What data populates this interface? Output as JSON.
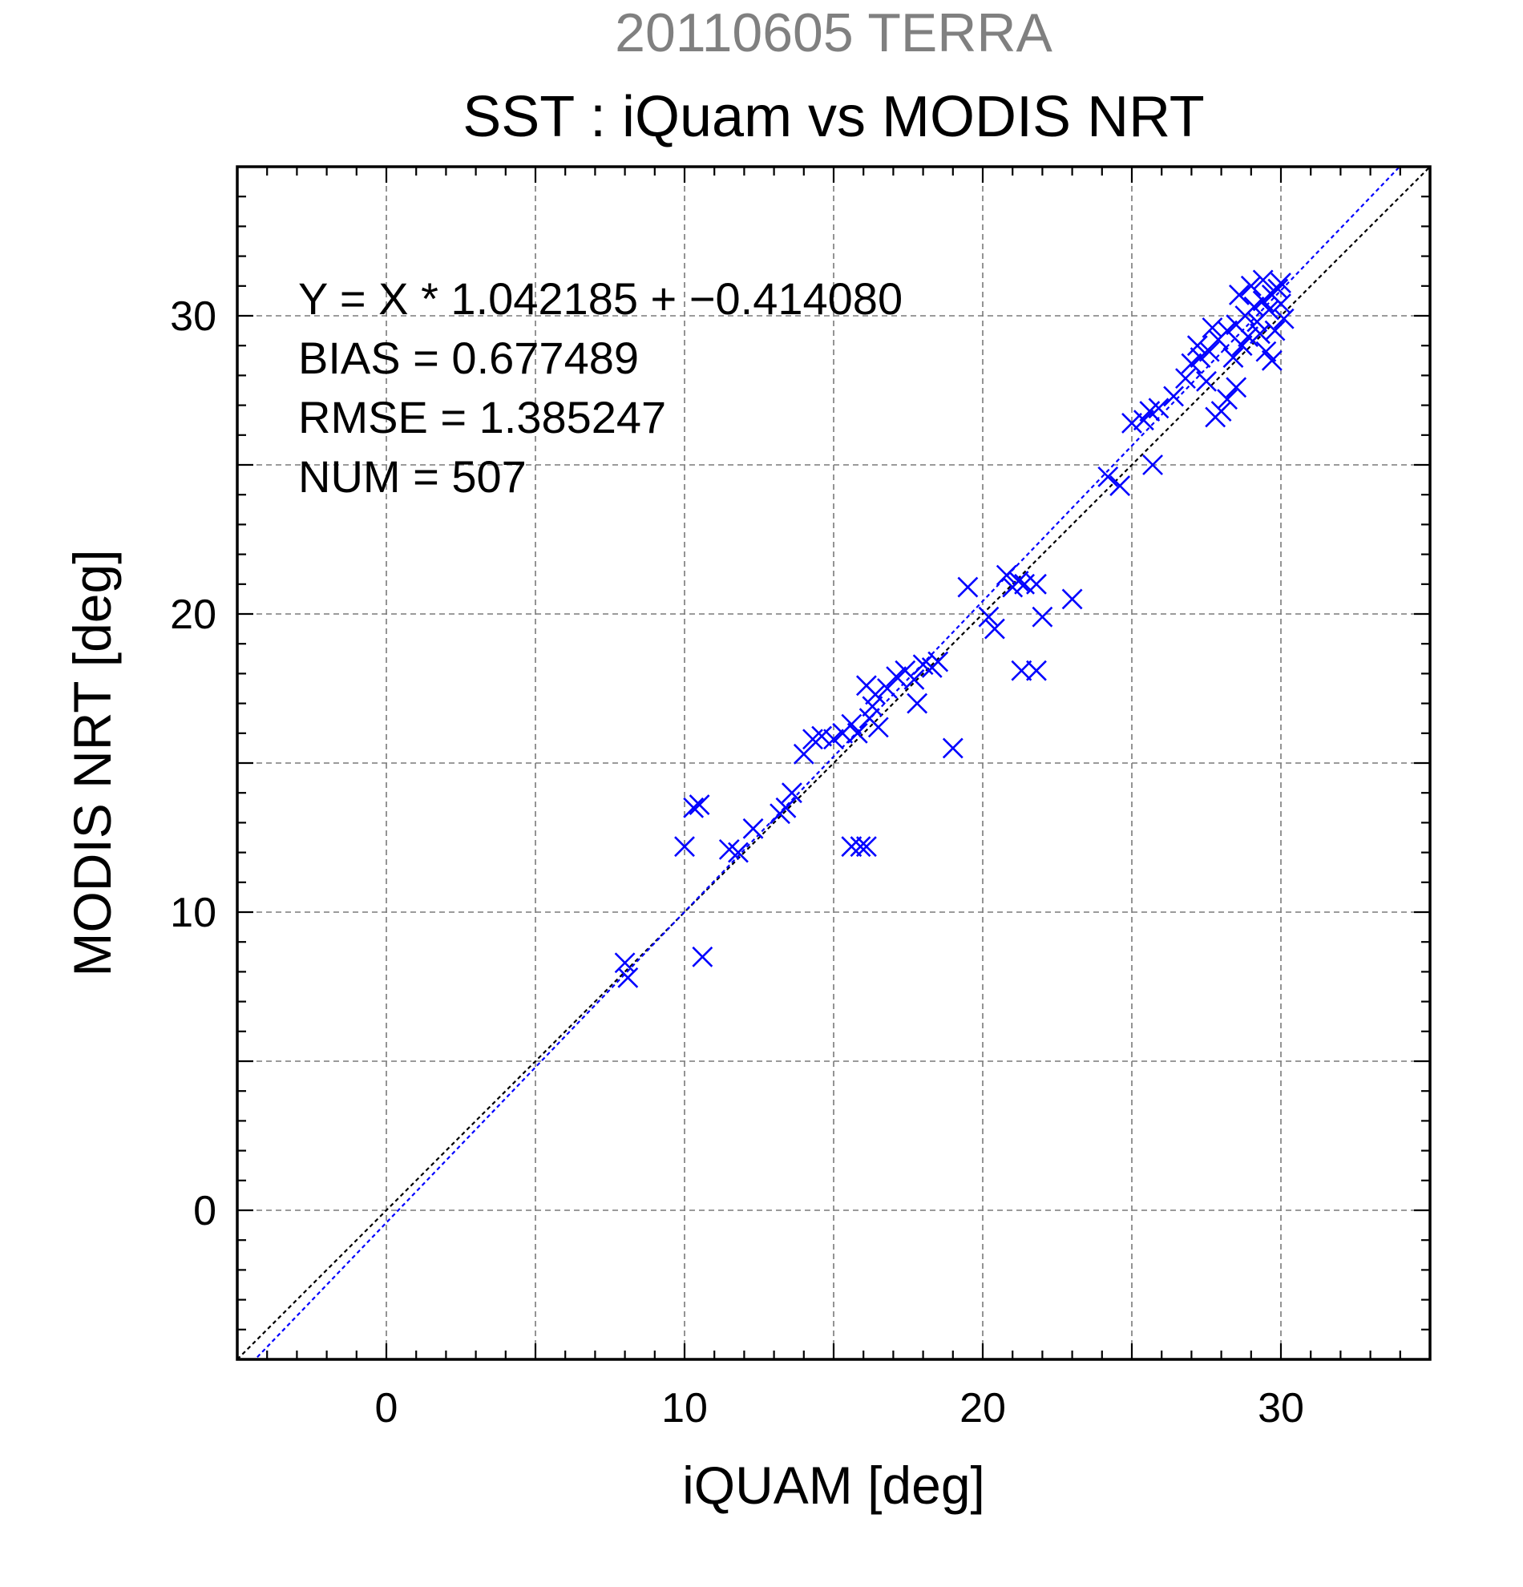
{
  "chart_data": {
    "type": "scatter",
    "supertitle": "20110605 TERRA",
    "title": "SST : iQuam vs MODIS NRT",
    "xlabel": "iQUAM [deg]",
    "ylabel": "MODIS NRT [deg]",
    "xlim": [
      -5,
      35
    ],
    "ylim": [
      -5,
      35
    ],
    "major_ticks": [
      0,
      10,
      20,
      30
    ],
    "tick_labels": [
      "0",
      "10",
      "20",
      "30"
    ],
    "grid_step": 5,
    "minor_step": 1,
    "grid": true,
    "marker": "x",
    "marker_color": "#0000ff",
    "stats": {
      "equation": "Y = X * 1.042185 + −0.414080",
      "bias": "BIAS = 0.677489",
      "rmse": "RMSE = 1.385247",
      "num": "NUM = 507"
    },
    "lines": [
      {
        "kind": "identity",
        "slope": 1.0,
        "intercept": 0.0,
        "color": "#000000"
      },
      {
        "kind": "regression",
        "slope": 1.042185,
        "intercept": -0.41408,
        "color": "#0000ff"
      }
    ],
    "series": [
      {
        "points": [
          [
            8.0,
            8.3
          ],
          [
            8.1,
            7.8
          ],
          [
            10.0,
            12.2
          ],
          [
            10.3,
            13.5
          ],
          [
            10.5,
            13.6
          ],
          [
            10.6,
            8.5
          ],
          [
            11.5,
            12.1
          ],
          [
            11.8,
            12.0
          ],
          [
            12.3,
            12.8
          ],
          [
            13.2,
            13.3
          ],
          [
            13.4,
            13.5
          ],
          [
            13.6,
            14.0
          ],
          [
            14.0,
            15.3
          ],
          [
            14.3,
            15.8
          ],
          [
            14.6,
            15.9
          ],
          [
            15.0,
            15.8
          ],
          [
            15.3,
            16.0
          ],
          [
            15.6,
            16.3
          ],
          [
            15.8,
            16.0
          ],
          [
            15.6,
            12.2
          ],
          [
            15.9,
            12.2
          ],
          [
            16.1,
            12.2
          ],
          [
            16.2,
            16.5
          ],
          [
            16.3,
            16.9
          ],
          [
            16.4,
            17.3
          ],
          [
            16.1,
            17.6
          ],
          [
            16.5,
            16.2
          ],
          [
            16.8,
            17.5
          ],
          [
            17.1,
            17.9
          ],
          [
            17.4,
            18.1
          ],
          [
            17.7,
            17.8
          ],
          [
            17.8,
            17.0
          ],
          [
            18.0,
            18.3
          ],
          [
            18.3,
            18.2
          ],
          [
            18.5,
            18.4
          ],
          [
            19.0,
            15.5
          ],
          [
            19.5,
            20.9
          ],
          [
            20.2,
            19.9
          ],
          [
            20.4,
            19.5
          ],
          [
            20.8,
            21.3
          ],
          [
            21.0,
            20.9
          ],
          [
            21.2,
            21.1
          ],
          [
            21.4,
            21.0
          ],
          [
            21.3,
            18.1
          ],
          [
            21.8,
            18.1
          ],
          [
            21.8,
            21.0
          ],
          [
            22.0,
            19.9
          ],
          [
            23.0,
            20.5
          ],
          [
            24.2,
            24.6
          ],
          [
            24.6,
            24.3
          ],
          [
            25.0,
            26.4
          ],
          [
            25.4,
            26.5
          ],
          [
            25.6,
            26.8
          ],
          [
            25.7,
            25.0
          ],
          [
            25.9,
            26.9
          ],
          [
            26.4,
            27.3
          ],
          [
            26.8,
            27.9
          ],
          [
            27.0,
            28.4
          ],
          [
            27.3,
            28.6
          ],
          [
            27.6,
            28.8
          ],
          [
            27.9,
            29.2
          ],
          [
            28.2,
            29.5
          ],
          [
            28.5,
            29.7
          ],
          [
            28.8,
            30.0
          ],
          [
            29.1,
            30.3
          ],
          [
            29.4,
            30.5
          ],
          [
            29.7,
            30.7
          ],
          [
            29.9,
            30.9
          ],
          [
            30.0,
            31.1
          ],
          [
            29.8,
            29.5
          ],
          [
            29.5,
            28.8
          ],
          [
            29.7,
            28.5
          ],
          [
            28.2,
            27.2
          ],
          [
            28.5,
            27.6
          ],
          [
            27.8,
            26.6
          ],
          [
            28.0,
            26.8
          ],
          [
            27.5,
            27.8
          ],
          [
            28.4,
            28.6
          ],
          [
            28.9,
            29.3
          ],
          [
            29.2,
            29.8
          ],
          [
            29.6,
            30.2
          ],
          [
            30.0,
            30.4
          ],
          [
            27.2,
            29.0
          ],
          [
            27.7,
            29.6
          ],
          [
            28.7,
            29.0
          ],
          [
            29.3,
            29.4
          ],
          [
            29.0,
            31.0
          ],
          [
            29.4,
            31.2
          ],
          [
            28.6,
            30.7
          ],
          [
            30.1,
            29.9
          ]
        ]
      }
    ]
  }
}
